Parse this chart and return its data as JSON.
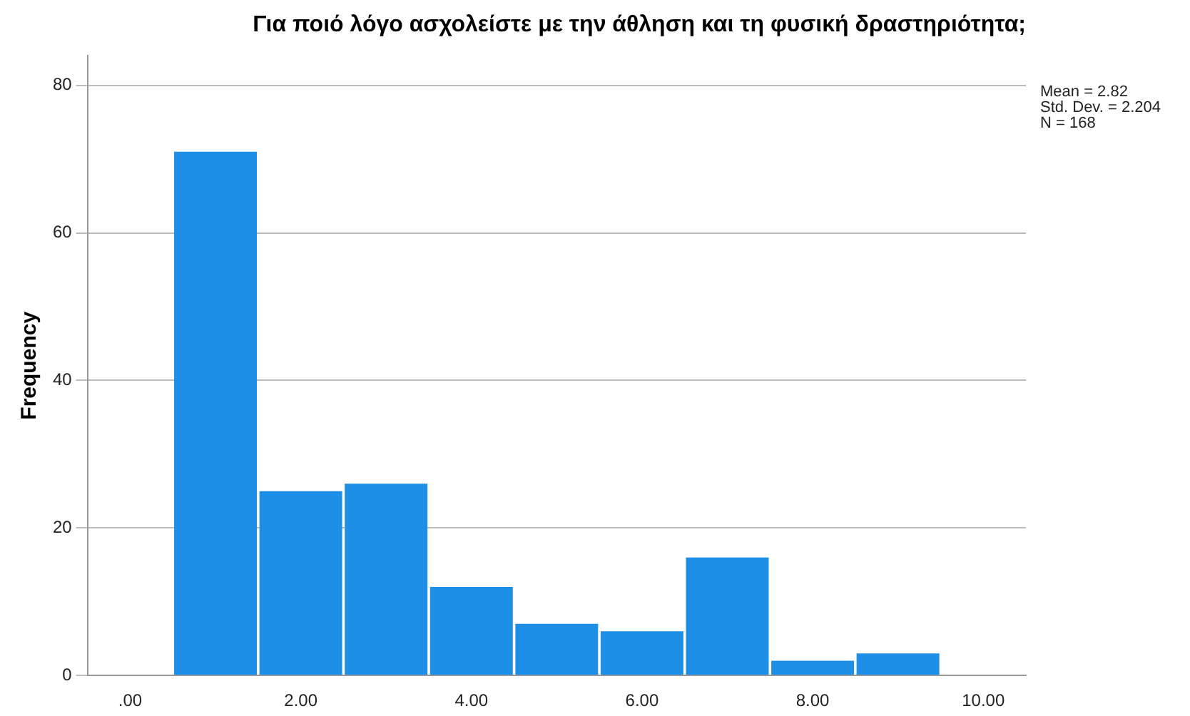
{
  "chart_data": {
    "type": "histogram",
    "title": "Για ποιό λόγο ασχολείστε με την άθληση και τη φυσική δραστηριότητα;",
    "ylabel": "Frequency",
    "bins": [
      0.5,
      1.5,
      2.5,
      3.5,
      4.5,
      5.5,
      6.5,
      7.5,
      8.5,
      9.5
    ],
    "values": [
      71,
      25,
      26,
      12,
      7,
      6,
      16,
      2,
      3
    ],
    "color": "#1e8fe6",
    "xlim": [
      -0.5,
      10.5
    ],
    "xticks": [
      {
        "value": 0,
        "label": ".00"
      },
      {
        "value": 2,
        "label": "2.00"
      },
      {
        "value": 4,
        "label": "4.00"
      },
      {
        "value": 6,
        "label": "6.00"
      },
      {
        "value": 8,
        "label": "8.00"
      },
      {
        "value": 10,
        "label": "10.00"
      }
    ],
    "ylim": [
      0,
      84
    ],
    "yticks": [
      0,
      20,
      40,
      60,
      80
    ],
    "grid": "y",
    "annotations": [
      "Mean = 2.82",
      "Std. Dev. = 2.204",
      "N = 168"
    ]
  }
}
